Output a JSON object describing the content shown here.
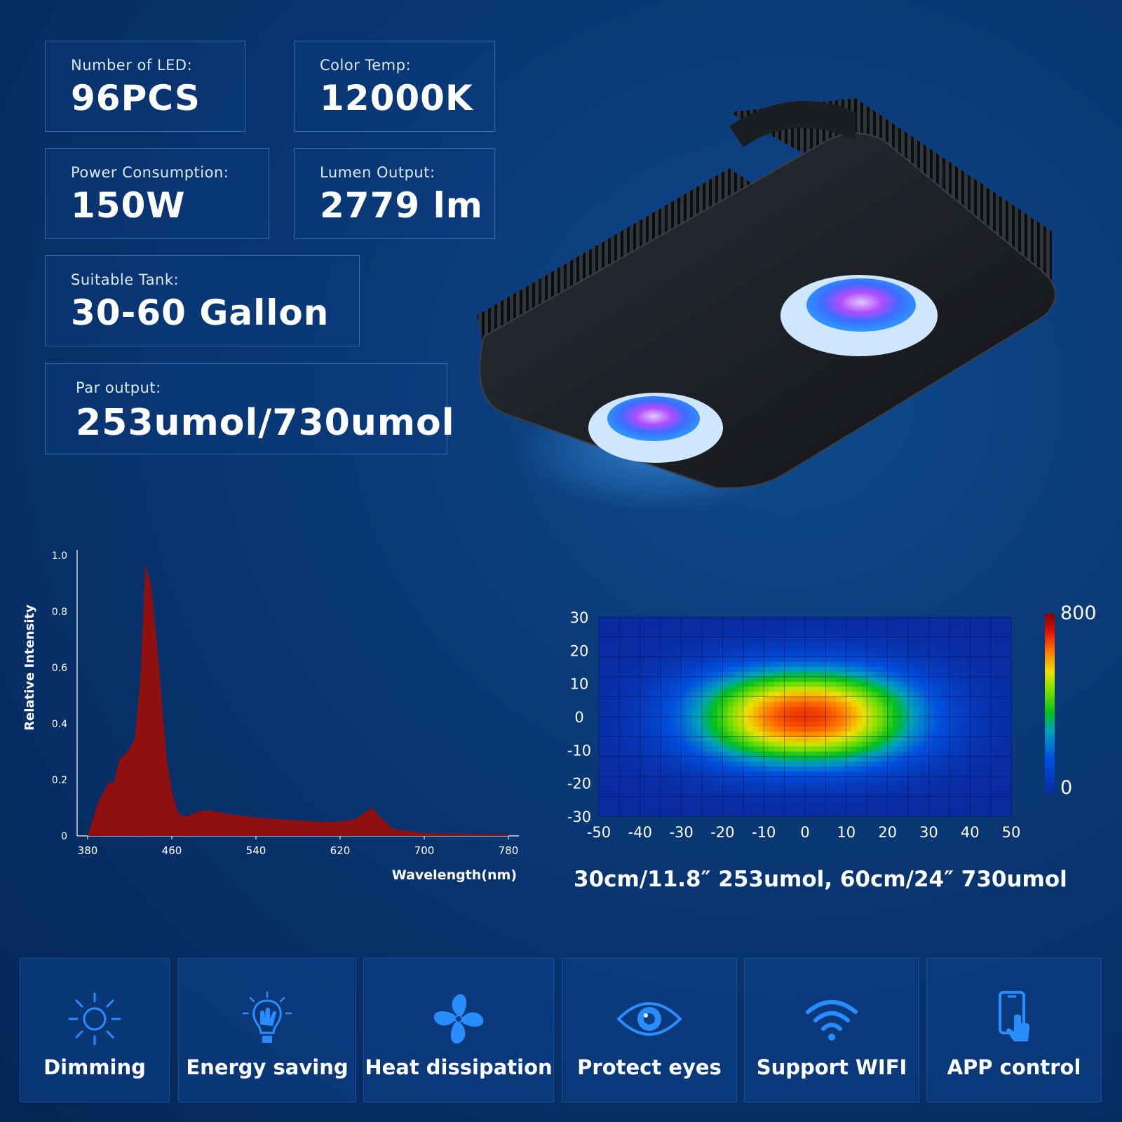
{
  "specs": {
    "led": {
      "label": "Number of LED:",
      "value": "96PCS"
    },
    "color_temp": {
      "label": "Color Temp:",
      "value": "12000K"
    },
    "power": {
      "label": "Power Consumption:",
      "value": "150W"
    },
    "lumen": {
      "label": "Lumen Output:",
      "value": "2779 lm"
    },
    "tank": {
      "label": "Suitable Tank:",
      "value": "30-60 Gallon"
    },
    "par": {
      "label": "Par output:",
      "value": "253umol/730umol"
    }
  },
  "chart_data": [
    {
      "type": "area",
      "ylabel": "Relative Intensity",
      "xlabel": "Wavelength(nm)",
      "xlim": [
        370,
        790
      ],
      "ylim": [
        0,
        1.0
      ],
      "y_ticks": [
        "1.0",
        "0.8",
        "0.6",
        "0.4",
        "0.2",
        "0"
      ],
      "x_ticks": [
        "380",
        "460",
        "540",
        "620",
        "700",
        "780"
      ],
      "x": [
        380,
        390,
        400,
        405,
        410,
        420,
        425,
        430,
        435,
        440,
        445,
        450,
        455,
        460,
        465,
        470,
        475,
        480,
        490,
        500,
        510,
        520,
        540,
        560,
        600,
        620,
        635,
        650,
        660,
        670,
        700,
        720,
        780
      ],
      "y": [
        0.0,
        0.12,
        0.19,
        0.19,
        0.27,
        0.31,
        0.35,
        0.55,
        0.97,
        0.9,
        0.72,
        0.5,
        0.28,
        0.16,
        0.09,
        0.07,
        0.07,
        0.08,
        0.09,
        0.088,
        0.08,
        0.075,
        0.065,
        0.06,
        0.05,
        0.05,
        0.06,
        0.1,
        0.06,
        0.025,
        0.01,
        0.008,
        0.005
      ]
    },
    {
      "type": "heatmap",
      "x_ticks": [
        "-50",
        "-40",
        "-30",
        "-20",
        "-10",
        "0",
        "10",
        "20",
        "30",
        "40",
        "50"
      ],
      "y_ticks": [
        "30",
        "20",
        "10",
        "0",
        "-10",
        "-20",
        "-30"
      ],
      "xlim": [
        -50,
        50
      ],
      "ylim": [
        -30,
        30
      ],
      "peak": 800,
      "colorbar": {
        "max_label": "800",
        "min_label": "0"
      }
    }
  ],
  "par_caption": "30cm/11.8″  253umol, 60cm/24″  730umol",
  "features": [
    {
      "icon": "sun-icon",
      "label": "Dimming"
    },
    {
      "icon": "bulb-hand-icon",
      "label": "Energy saving"
    },
    {
      "icon": "fan-icon",
      "label": "Heat dissipation"
    },
    {
      "icon": "eye-icon",
      "label": "Protect eyes"
    },
    {
      "icon": "wifi-icon",
      "label": "Support WIFI"
    },
    {
      "icon": "phone-touch-icon",
      "label": "APP control"
    }
  ],
  "colors": {
    "accent": "#1e90ff",
    "box_border": "#3f7fd0",
    "background": "#0a3a78"
  }
}
